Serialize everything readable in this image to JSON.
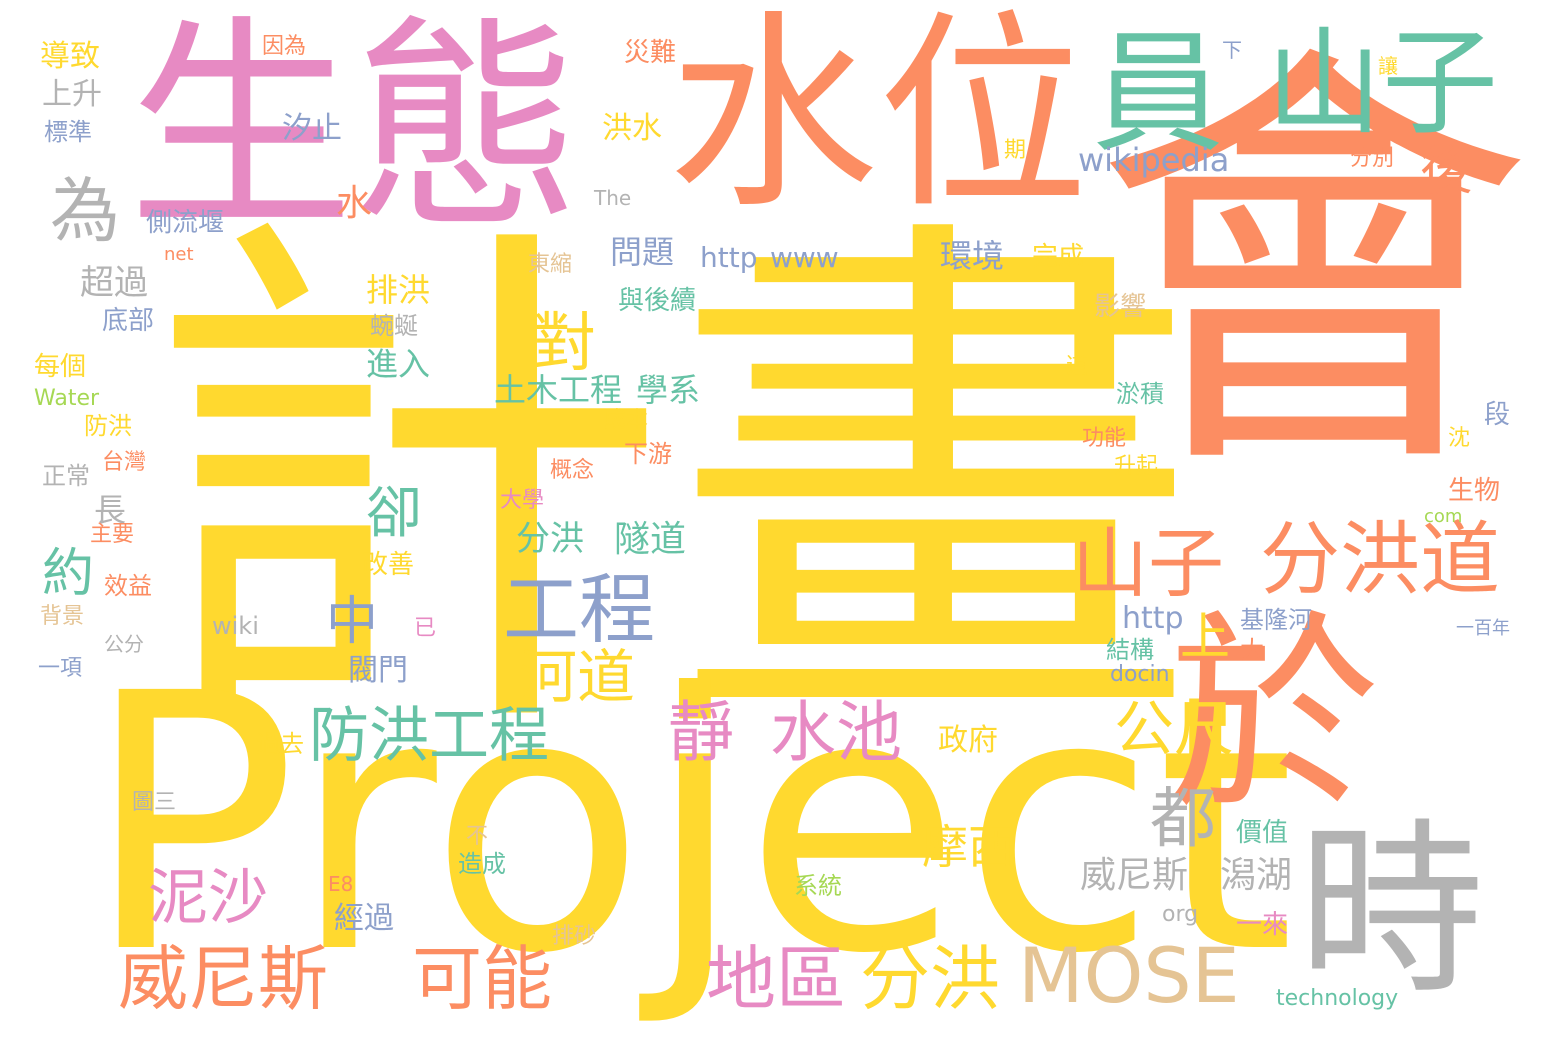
{
  "palette": {
    "yellow": "#FFD92F",
    "orange": "#FC8D62",
    "pink": "#E78AC3",
    "green": "#66C2A5",
    "blue": "#8DA0CB",
    "lime": "#A6D854",
    "tan": "#E5C494",
    "gray": "#B3B3B3"
  },
  "words": [
    {
      "text": "計畫",
      "color": "yellow"
    },
    {
      "text": "Project",
      "color": "yellow"
    },
    {
      "text": "會",
      "color": "orange"
    },
    {
      "text": "生態",
      "color": "pink"
    },
    {
      "text": "水位",
      "color": "orange"
    },
    {
      "text": "於",
      "color": "orange"
    },
    {
      "text": "時",
      "color": "gray"
    },
    {
      "text": "員",
      "color": "green"
    },
    {
      "text": "山子",
      "color": "green"
    },
    {
      "text": "MOSE",
      "color": "tan"
    },
    {
      "text": "分洪道",
      "color": "orange"
    },
    {
      "text": "山子",
      "color": "orange"
    },
    {
      "text": "工程",
      "color": "blue"
    },
    {
      "text": "威尼斯",
      "color": "orange"
    },
    {
      "text": "可能",
      "color": "orange"
    },
    {
      "text": "地區",
      "color": "pink"
    },
    {
      "text": "分洪",
      "color": "yellow"
    },
    {
      "text": "防洪工程",
      "color": "green"
    },
    {
      "text": "靜",
      "color": "pink"
    },
    {
      "text": "水池",
      "color": "pink"
    },
    {
      "text": "泥沙",
      "color": "pink"
    },
    {
      "text": "河道",
      "color": "yellow"
    },
    {
      "text": "公尺",
      "color": "yellow"
    },
    {
      "text": "為",
      "color": "gray"
    },
    {
      "text": "都",
      "color": "gray"
    },
    {
      "text": "對",
      "color": "yellow"
    },
    {
      "text": "卻",
      "color": "green"
    },
    {
      "text": "中",
      "color": "blue"
    },
    {
      "text": "約",
      "color": "green"
    },
    {
      "text": "摩西",
      "color": "yellow"
    },
    {
      "text": "上",
      "color": "yellow"
    },
    {
      "text": "後",
      "color": "orange"
    },
    {
      "text": "威尼斯",
      "color": "gray"
    },
    {
      "text": "潟湖",
      "color": "gray"
    },
    {
      "text": "wikipedia",
      "color": "blue"
    },
    {
      "text": "分洪",
      "color": "green"
    },
    {
      "text": "隧道",
      "color": "green"
    },
    {
      "text": "土木工程",
      "color": "green"
    },
    {
      "text": "學系",
      "color": "green"
    },
    {
      "text": "導致",
      "color": "yellow"
    },
    {
      "text": "上升",
      "color": "gray"
    },
    {
      "text": "標準",
      "color": "blue"
    },
    {
      "text": "汐止",
      "color": "blue"
    },
    {
      "text": "側流堰",
      "color": "blue"
    },
    {
      "text": "水",
      "color": "orange"
    },
    {
      "text": "超過",
      "color": "gray"
    },
    {
      "text": "排洪",
      "color": "yellow"
    },
    {
      "text": "底部",
      "color": "blue"
    },
    {
      "text": "進入",
      "color": "green"
    },
    {
      "text": "蜿蜒",
      "color": "gray"
    },
    {
      "text": "每個",
      "color": "yellow"
    },
    {
      "text": "Water",
      "color": "lime"
    },
    {
      "text": "防洪",
      "color": "yellow"
    },
    {
      "text": "台灣",
      "color": "orange"
    },
    {
      "text": "正常",
      "color": "gray"
    },
    {
      "text": "長",
      "color": "gray"
    },
    {
      "text": "主要",
      "color": "orange"
    },
    {
      "text": "效益",
      "color": "orange"
    },
    {
      "text": "背景",
      "color": "tan"
    },
    {
      "text": "公分",
      "color": "gray"
    },
    {
      "text": "一項",
      "color": "blue"
    },
    {
      "text": "改善",
      "color": "yellow"
    },
    {
      "text": "閥門",
      "color": "blue"
    },
    {
      "text": "政府",
      "color": "yellow"
    },
    {
      "text": "過去",
      "color": "yellow"
    },
    {
      "text": "經過",
      "color": "blue"
    },
    {
      "text": "E8",
      "color": "orange"
    },
    {
      "text": "造成",
      "color": "green"
    },
    {
      "text": "不",
      "color": "tan"
    },
    {
      "text": "系統",
      "color": "lime"
    },
    {
      "text": "排砂",
      "color": "tan"
    },
    {
      "text": "問題",
      "color": "blue"
    },
    {
      "text": "與後續",
      "color": "green"
    },
    {
      "text": "http",
      "color": "blue"
    },
    {
      "text": "www",
      "color": "blue"
    },
    {
      "text": "環境",
      "color": "blue"
    },
    {
      "text": "完成",
      "color": "yellow"
    },
    {
      "text": "影響",
      "color": "tan"
    },
    {
      "text": "淤積",
      "color": "green"
    },
    {
      "text": "功能",
      "color": "orange"
    },
    {
      "text": "升起",
      "color": "yellow"
    },
    {
      "text": "生物",
      "color": "orange"
    },
    {
      "text": "沈",
      "color": "yellow"
    },
    {
      "text": "段",
      "color": "blue"
    },
    {
      "text": "http",
      "color": "blue"
    },
    {
      "text": "基隆河",
      "color": "blue"
    },
    {
      "text": "結構",
      "color": "green"
    },
    {
      "text": "大",
      "color": "orange"
    },
    {
      "text": "docin",
      "color": "blue"
    },
    {
      "text": "價值",
      "color": "green"
    },
    {
      "text": "org",
      "color": "gray"
    },
    {
      "text": "一來",
      "color": "pink"
    },
    {
      "text": "technology",
      "color": "green"
    },
    {
      "text": "洪水",
      "color": "yellow"
    },
    {
      "text": "災難",
      "color": "orange"
    },
    {
      "text": "分別",
      "color": "orange"
    },
    {
      "text": "下游",
      "color": "orange"
    },
    {
      "text": "概念",
      "color": "orange"
    },
    {
      "text": "大學",
      "color": "pink"
    },
    {
      "text": "成本",
      "color": "yellow"
    },
    {
      "text": "東縮",
      "color": "tan"
    },
    {
      "text": "因為",
      "color": "orange"
    },
    {
      "text": "wiki",
      "color": "gray"
    },
    {
      "text": "已",
      "color": "pink"
    },
    {
      "text": "圖三",
      "color": "gray"
    },
    {
      "text": "net",
      "color": "orange"
    },
    {
      "text": "The",
      "color": "gray"
    },
    {
      "text": "期",
      "color": "yellow"
    },
    {
      "text": "道",
      "color": "yellow"
    },
    {
      "text": "一百年",
      "color": "blue"
    },
    {
      "text": "下",
      "color": "blue"
    },
    {
      "text": "讓",
      "color": "yellow"
    },
    {
      "text": "com",
      "color": "lime"
    }
  ]
}
